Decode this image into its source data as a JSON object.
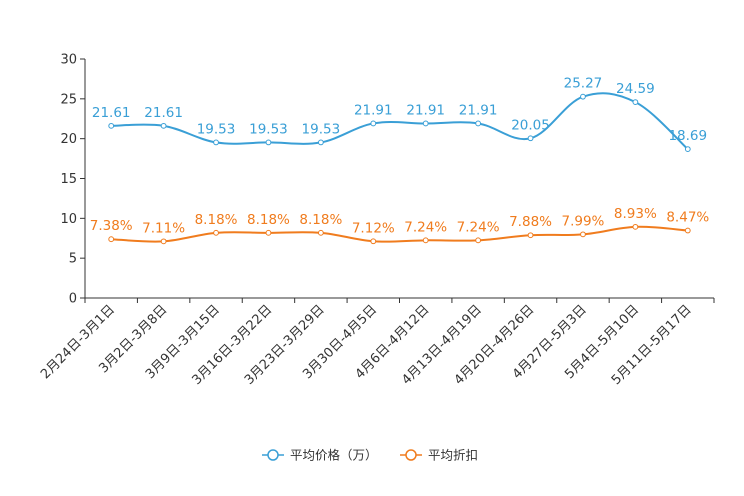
{
  "chart_data": {
    "type": "line",
    "title": "",
    "xlabel": "",
    "ylabel": "",
    "categories": [
      "2月24日-3月1日",
      "3月2日-3月8日",
      "3月9日-3月15日",
      "3月16日-3月22日",
      "3月23日-3月29日",
      "3月30日-4月5日",
      "4月6日-4月12日",
      "4月13日-4月19日",
      "4月20日-4月26日",
      "4月27日-5月3日",
      "5月4日-5月10日",
      "5月11日-5月17日"
    ],
    "yticks": [
      0,
      5,
      10,
      15,
      20,
      25,
      30
    ],
    "ylim": [
      0,
      30
    ],
    "grid": false,
    "legend_position": "bottom-center",
    "series": [
      {
        "name": "平均价格（万）",
        "color": "#3a9fd6",
        "values": [
          21.61,
          21.61,
          19.53,
          19.53,
          19.53,
          21.91,
          21.91,
          21.91,
          20.05,
          25.27,
          24.59,
          18.69
        ],
        "labels": [
          "21.61",
          "21.61",
          "19.53",
          "19.53",
          "19.53",
          "21.91",
          "21.91",
          "21.91",
          "20.05",
          "25.27",
          "24.59",
          "18.69"
        ]
      },
      {
        "name": "平均折扣",
        "color": "#f07c1e",
        "values": [
          7.38,
          7.11,
          8.18,
          8.18,
          8.18,
          7.12,
          7.24,
          7.24,
          7.88,
          7.99,
          8.93,
          8.47
        ],
        "labels": [
          "7.38%",
          "7.11%",
          "8.18%",
          "8.18%",
          "8.18%",
          "7.12%",
          "7.24%",
          "7.24%",
          "7.88%",
          "7.99%",
          "8.93%",
          "8.47%"
        ]
      }
    ]
  }
}
